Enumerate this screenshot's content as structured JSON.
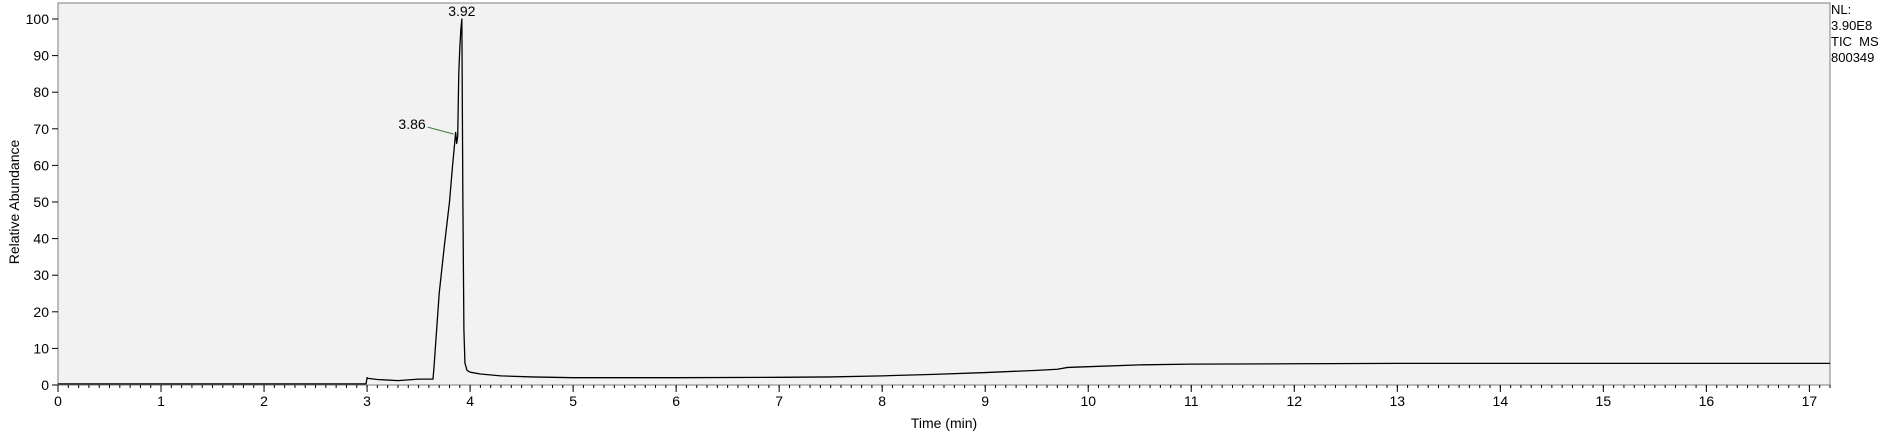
{
  "chart_data": {
    "type": "line",
    "title": "",
    "xlabel": "Time (min)",
    "ylabel": "Relative Abundance",
    "xlim": [
      0,
      17.2
    ],
    "ylim": [
      0,
      100
    ],
    "x_ticks": [
      0,
      1,
      2,
      3,
      4,
      5,
      6,
      7,
      8,
      9,
      10,
      11,
      12,
      13,
      14,
      15,
      16,
      17
    ],
    "y_ticks": [
      0,
      10,
      20,
      30,
      40,
      50,
      60,
      70,
      80,
      90,
      100
    ],
    "grid": false,
    "line_color": "#000000",
    "plot_background": "#f2f2f2",
    "series": [
      {
        "x": [
          0,
          2.99,
          3.0,
          3.01,
          3.1,
          3.3,
          3.5,
          3.64,
          3.65,
          3.7,
          3.75,
          3.8,
          3.83,
          3.85,
          3.86,
          3.87,
          3.88,
          3.89,
          3.9,
          3.91,
          3.92,
          3.93,
          3.94,
          3.95,
          3.97,
          4.0,
          4.1,
          4.3,
          4.6,
          5.0,
          6.0,
          7.0,
          7.5,
          8.0,
          8.5,
          9.0,
          9.5,
          9.7,
          9.8,
          9.9,
          10.0,
          10.5,
          11.0,
          12.0,
          13.0,
          14.0,
          15.0,
          16.0,
          17.0,
          17.2
        ],
        "y": [
          0.3,
          0.3,
          2.0,
          1.8,
          1.5,
          1.2,
          1.6,
          1.6,
          5,
          25,
          38,
          50,
          60,
          66,
          69,
          66,
          68,
          85,
          92,
          97,
          100,
          50,
          15,
          6,
          4,
          3.5,
          3,
          2.5,
          2.2,
          2.0,
          2.0,
          2.1,
          2.2,
          2.5,
          2.9,
          3.4,
          4.0,
          4.3,
          4.8,
          4.9,
          5.0,
          5.5,
          5.7,
          5.8,
          5.9,
          5.9,
          5.9,
          5.9,
          5.9,
          5.9
        ]
      }
    ],
    "annotations": [
      {
        "text": "3.92",
        "x": 3.92,
        "y": 100
      },
      {
        "text": "3.86",
        "x": 3.86,
        "y": 68
      }
    ]
  },
  "side_info": [
    "NL:",
    "3.90E8",
    "TIC  MS",
    "800349"
  ]
}
